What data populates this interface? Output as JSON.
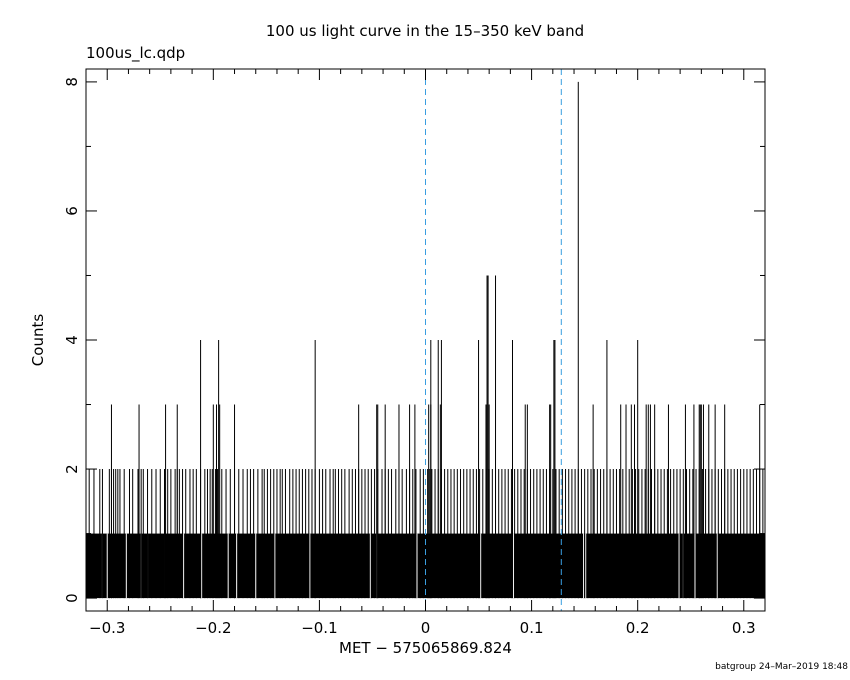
{
  "header": {
    "title": "100 us light curve in the 15–350 keV band",
    "subtitle": "100us_lc.qdp"
  },
  "footer": {
    "stamp": "batgroup 24–Mar–2019 18:48"
  },
  "chart_data": {
    "type": "bar",
    "title": "100 us light curve in the 15–350 keV band",
    "xlabel": "MET − 575065869.824",
    "ylabel": "Counts",
    "xlim": [
      -0.32,
      0.32
    ],
    "ylim": [
      -0.2,
      8.2
    ],
    "bin_width": 0.0001,
    "baseline_counts": 1,
    "x_ticks": [
      -0.3,
      -0.2,
      -0.1,
      0,
      0.1,
      0.2,
      0.3
    ],
    "x_tick_labels": [
      "−0.3",
      "−0.2",
      "−0.1",
      "0",
      "0.1",
      "0.2",
      "0.3"
    ],
    "y_ticks": [
      0,
      2,
      4,
      6,
      8
    ],
    "y_tick_labels": [
      "0",
      "2",
      "4",
      "6",
      "8"
    ],
    "zero_count_bins": [
      -0.3045,
      -0.3,
      -0.282,
      -0.268,
      -0.262,
      -0.246,
      -0.228,
      -0.211,
      -0.186,
      -0.178,
      -0.16,
      -0.142,
      -0.109,
      -0.052,
      -0.046,
      -0.008,
      0.052,
      0.083,
      0.149,
      0.151,
      0.239,
      0.243,
      0.254,
      0.275
    ],
    "series": [
      {
        "counts": 2,
        "x": [
          -0.317,
          -0.3125,
          -0.307,
          -0.3045,
          -0.298,
          -0.296,
          -0.294,
          -0.292,
          -0.29,
          -0.288,
          -0.284,
          -0.279,
          -0.276,
          -0.271,
          -0.268,
          -0.266,
          -0.262,
          -0.258,
          -0.254,
          -0.25,
          -0.246,
          -0.243,
          -0.24,
          -0.236,
          -0.234,
          -0.232,
          -0.229,
          -0.226,
          -0.222,
          -0.219,
          -0.216,
          -0.212,
          -0.208,
          -0.2055,
          -0.203,
          -0.201,
          -0.198,
          -0.196,
          -0.192,
          -0.188,
          -0.184,
          -0.18,
          -0.176,
          -0.172,
          -0.168,
          -0.165,
          -0.162,
          -0.158,
          -0.154,
          -0.152,
          -0.149,
          -0.146,
          -0.143,
          -0.14,
          -0.137,
          -0.135,
          -0.132,
          -0.128,
          -0.125,
          -0.122,
          -0.119,
          -0.116,
          -0.113,
          -0.11,
          -0.107,
          -0.104,
          -0.1,
          -0.097,
          -0.094,
          -0.09,
          -0.087,
          -0.085,
          -0.082,
          -0.079,
          -0.076,
          -0.072,
          -0.069,
          -0.066,
          -0.063,
          -0.06,
          -0.057,
          -0.054,
          -0.051,
          -0.048,
          -0.045,
          -0.041,
          -0.038,
          -0.035,
          -0.032,
          -0.028,
          -0.025,
          -0.022,
          -0.018,
          -0.015,
          -0.012,
          -0.009,
          -0.005,
          -0.002,
          0.002,
          0.004,
          0.006,
          0.009,
          0.012,
          0.015,
          0.018,
          0.021,
          0.024,
          0.027,
          0.03,
          0.033,
          0.036,
          0.039,
          0.042,
          0.045,
          0.048,
          0.051,
          0.054,
          0.057,
          0.06,
          0.063,
          0.066,
          0.069,
          0.072,
          0.075,
          0.078,
          0.081,
          0.084,
          0.087,
          0.09,
          0.093,
          0.096,
          0.099,
          0.102,
          0.105,
          0.108,
          0.111,
          0.114,
          0.117,
          0.12,
          0.123,
          0.126,
          0.129,
          0.132,
          0.135,
          0.138,
          0.141,
          0.144,
          0.147,
          0.15,
          0.153,
          0.156,
          0.159,
          0.162,
          0.165,
          0.168,
          0.171,
          0.174,
          0.177,
          0.18,
          0.183,
          0.186,
          0.189,
          0.192,
          0.195,
          0.198,
          0.201,
          0.204,
          0.207,
          0.21,
          0.213,
          0.216,
          0.219,
          0.222,
          0.225,
          0.228,
          0.231,
          0.234,
          0.237,
          0.24,
          0.243,
          0.246,
          0.249,
          0.252,
          0.255,
          0.258,
          0.261,
          0.264,
          0.267,
          0.27,
          0.273,
          0.276,
          0.279,
          0.282,
          0.285,
          0.288,
          0.291,
          0.294,
          0.297,
          0.3,
          0.303,
          0.306,
          0.309,
          0.312,
          0.315,
          0.318
        ]
      },
      {
        "counts": 3,
        "x": [
          -0.296,
          -0.27,
          -0.245,
          -0.234,
          -0.2,
          -0.197,
          -0.194,
          -0.18,
          -0.063,
          -0.046,
          -0.045,
          -0.038,
          -0.025,
          -0.015,
          -0.01,
          0.003,
          0.005,
          0.014,
          0.057,
          0.06,
          0.094,
          0.096,
          0.117,
          0.118,
          0.158,
          0.184,
          0.189,
          0.194,
          0.197,
          0.208,
          0.21,
          0.212,
          0.216,
          0.229,
          0.245,
          0.253,
          0.258,
          0.259,
          0.26,
          0.262,
          0.267,
          0.273,
          0.282,
          0.315
        ]
      },
      {
        "counts": 4,
        "x": [
          -0.212,
          -0.195,
          -0.104,
          0.005,
          0.012,
          0.015,
          0.05,
          0.082,
          0.121,
          0.122,
          0.171,
          0.2
        ]
      },
      {
        "counts": 5,
        "x": [
          0.058,
          0.059,
          0.066
        ]
      },
      {
        "counts": 8,
        "x": [
          0.144
        ]
      }
    ],
    "vertical_lines": [
      {
        "x": 0,
        "style": "dashed",
        "color": "#3a9ee0"
      },
      {
        "x": 0.128,
        "style": "dashed",
        "color": "#3a9ee0"
      }
    ],
    "colors": {
      "bars": "#000000",
      "axes": "#000000",
      "markers": "#3a9ee0"
    },
    "grid": false,
    "legend": "none"
  }
}
